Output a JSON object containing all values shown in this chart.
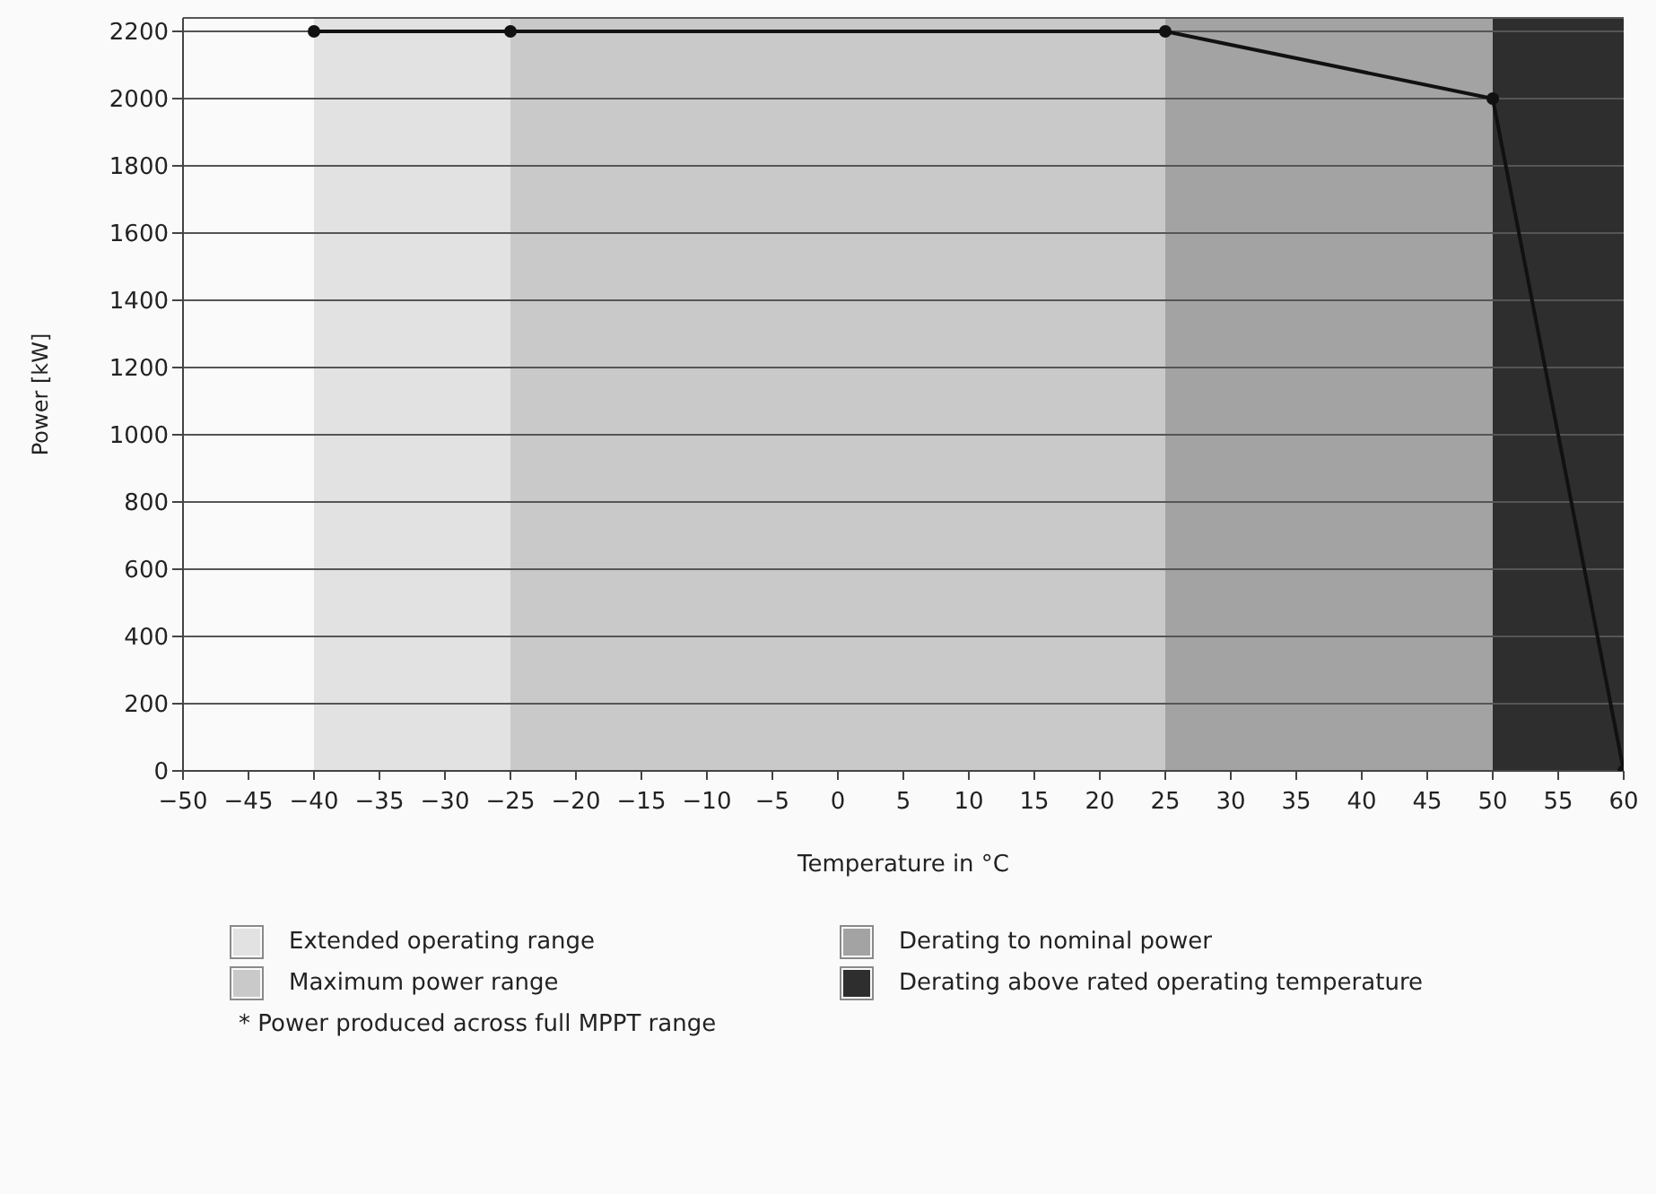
{
  "chart_data": {
    "type": "line",
    "xlabel": "Temperature in °C",
    "ylabel": "Power [kW]",
    "x": [
      -40,
      -25,
      25,
      50,
      60
    ],
    "series": [
      {
        "color": "#111111",
        "values": [
          2200,
          2200,
          2200,
          2000,
          0
        ]
      }
    ],
    "xlim": [
      -50,
      60
    ],
    "xticks": [
      -50,
      -45,
      -40,
      -35,
      -30,
      -25,
      -20,
      -15,
      -10,
      -5,
      0,
      5,
      10,
      15,
      20,
      25,
      30,
      35,
      40,
      45,
      50,
      55,
      60
    ],
    "ylim": [
      0,
      2240
    ],
    "yticks": [
      0,
      200,
      400,
      600,
      800,
      1000,
      1200,
      1400,
      1600,
      1800,
      2000,
      2200
    ],
    "grid": "y",
    "marker": "circle",
    "line_style": "solid",
    "legend": "bottom",
    "bands": [
      {
        "axis": "x",
        "from": -40,
        "to": -25,
        "label": "Extended operating range",
        "color": "#e2e2e2"
      },
      {
        "axis": "x",
        "from": -25,
        "to": 25,
        "label": "Maximum power range",
        "color": "#c9c9c9"
      },
      {
        "axis": "x",
        "from": 25,
        "to": 50,
        "label": "Derating to nominal power",
        "color": "#a3a3a3"
      },
      {
        "axis": "x",
        "from": 50,
        "to": 60,
        "label": "Derating above rated operating temperature",
        "color": "#2e2e2e"
      }
    ],
    "annotations": [
      "* Power produced across full MPPT range"
    ]
  }
}
